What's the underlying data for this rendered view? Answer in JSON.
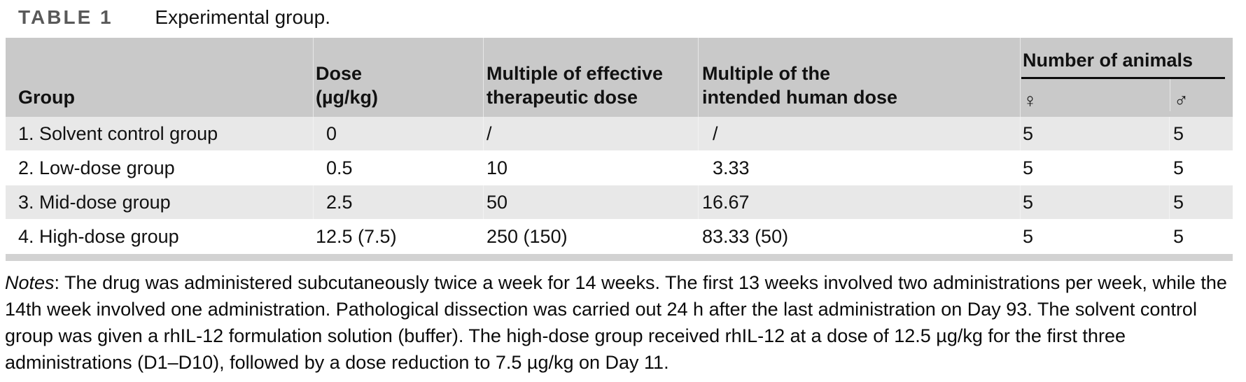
{
  "title": {
    "label": "TABLE 1",
    "caption": "Experimental group."
  },
  "colors": {
    "header_bg": "#c9c9c9",
    "row_alt_bg": "#e8e8e8",
    "bottom_bar_bg": "#d2d2d2",
    "title_label": "#595959"
  },
  "table": {
    "headers": {
      "group": "Group",
      "dose_line1": "Dose",
      "dose_line2": "(µg/kg)",
      "eff_line1": "Multiple of effective",
      "eff_line2": "therapeutic dose",
      "human_line1": "Multiple of the",
      "human_line2": "intended human dose",
      "animals": "Number of animals",
      "female": "♀",
      "male": "♂"
    },
    "rows": [
      {
        "cells": [
          "1. Solvent control group",
          " 0",
          "/",
          " /",
          "5",
          "5"
        ]
      },
      {
        "cells": [
          "2. Low-dose group",
          " 0.5",
          "10",
          " 3.33",
          "5",
          "5"
        ]
      },
      {
        "cells": [
          "3. Mid-dose group",
          " 2.5",
          "50",
          "16.67",
          "5",
          "5"
        ]
      },
      {
        "cells": [
          "4. High-dose group",
          "12.5 (7.5)",
          "250 (150)",
          "83.33 (50)",
          "5",
          "5"
        ]
      }
    ]
  },
  "notes": {
    "label": "Notes",
    "colon": ": ",
    "body": "The drug was administered subcutaneously twice a week for 14 weeks. The first 13 weeks involved two administrations per week, while the 14th week involved one administration. Pathological dissection was carried out 24 h after the last administration on Day 93. The solvent control group was given a rhIL-12 formulation solution (buffer). The high-dose group received rhIL-12 at a dose of 12.5 µg/kg for the first three administrations (D1–D10), followed by a dose reduction to 7.5 µg/kg on Day 11."
  }
}
